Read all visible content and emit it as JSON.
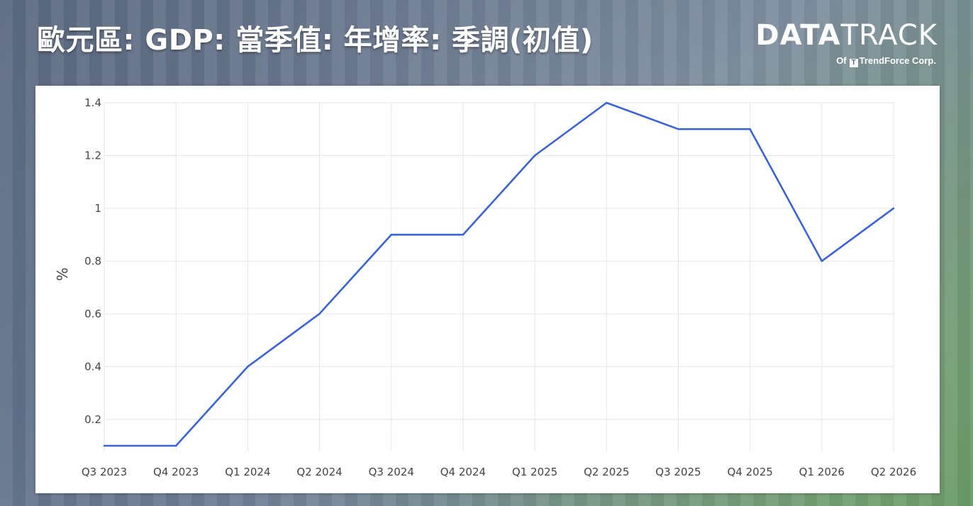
{
  "title": "歐元區: GDP: 當季值: 年增率: 季調(初值)",
  "logo": {
    "brand_bold": "DATA",
    "brand_light": "TRACK",
    "sub_prefix": "Of",
    "sub_icon": "trendforce-icon",
    "sub_company": "TrendForce Corp."
  },
  "colors": {
    "line": "#3a62d9",
    "title": "#ffffff"
  },
  "chart_data": {
    "type": "line",
    "title": "",
    "xlabel": "",
    "ylabel": "%",
    "categories": [
      "Q3 2023",
      "Q4 2023",
      "Q1 2024",
      "Q2 2024",
      "Q3 2024",
      "Q4 2024",
      "Q1 2025",
      "Q2 2025",
      "Q3 2025",
      "Q4 2025",
      "Q1 2026",
      "Q2 2026"
    ],
    "series": [
      {
        "values": [
          0.1,
          0.1,
          0.4,
          0.6,
          0.9,
          0.9,
          1.2,
          1.4,
          1.3,
          1.3,
          0.8,
          1.0
        ]
      }
    ],
    "yticks": [
      0.2,
      0.4,
      0.6,
      0.8,
      1,
      1.2,
      1.4
    ],
    "ytick_labels": [
      "0.2",
      "0.4",
      "0.6",
      "0.8",
      "1",
      "1.2",
      "1.4"
    ],
    "ylim": [
      0.1,
      1.4
    ],
    "grid": true,
    "legend": "none"
  }
}
